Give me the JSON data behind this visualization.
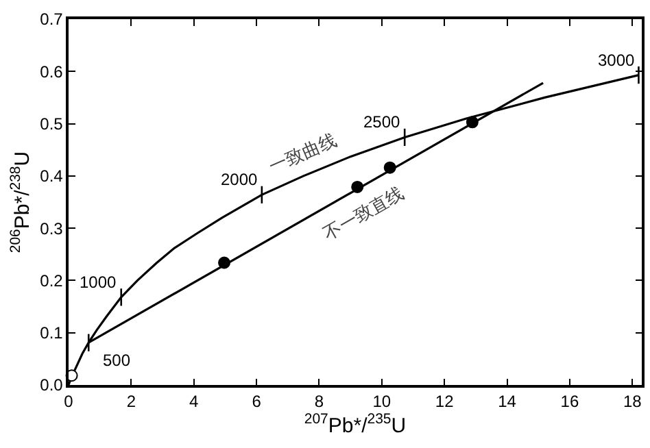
{
  "chart_data": {
    "type": "line",
    "xlabel": "$^{207}$Pb*/$^{235}$U",
    "ylabel": "$^{206}$Pb*/$^{238}$U",
    "xlim": [
      0,
      18.3
    ],
    "ylim": [
      0,
      0.7
    ],
    "xticks": [
      0,
      2,
      4,
      6,
      8,
      10,
      12,
      14,
      16,
      18
    ],
    "yticks": [
      {
        "value": 0,
        "label": "0.0"
      },
      0.1,
      0.2,
      0.3,
      0.4,
      0.5,
      0.6,
      0.7
    ],
    "series": [
      {
        "name": "一致曲线",
        "color": "#000000",
        "marker": "none",
        "x": [
          0,
          0.1,
          0.24,
          0.44,
          0.64,
          0.9,
          1.2,
          1.68,
          2.2,
          2.8,
          3.38,
          4.1,
          4.9,
          6.17,
          7.5,
          9.0,
          10.73,
          12.7,
          15.2,
          18.2
        ],
        "values": [
          0,
          0.016,
          0.034,
          0.06,
          0.081,
          0.105,
          0.13,
          0.168,
          0.2,
          0.233,
          0.262,
          0.29,
          0.32,
          0.364,
          0.4,
          0.437,
          0.474,
          0.51,
          0.55,
          0.593
        ]
      },
      {
        "name": "不一致直线",
        "color": "#000000",
        "marker": "none",
        "x": [
          0.64,
          15.15
        ],
        "values": [
          0.081,
          0.578
        ]
      },
      {
        "type": "scatter",
        "color": "#000000",
        "marker": "circle",
        "x": [
          4.97,
          9.22,
          10.26,
          12.89
        ],
        "values": [
          0.234,
          0.379,
          0.416,
          0.503
        ]
      },
      {
        "type": "scatter",
        "color": "#ffffff",
        "marker": "circle",
        "x": [
          0.1
        ],
        "values": [
          0.018
        ]
      }
    ],
    "annotations": [
      {
        "text": "500",
        "x": 0.64,
        "y": 0.081
      },
      {
        "text": "1000",
        "x": 1.68,
        "y": 0.168
      },
      {
        "text": "2000",
        "x": 6.17,
        "y": 0.364
      },
      {
        "text": "2500",
        "x": 10.73,
        "y": 0.474
      },
      {
        "text": "3000",
        "x": 18.2,
        "y": 0.593
      }
    ]
  }
}
